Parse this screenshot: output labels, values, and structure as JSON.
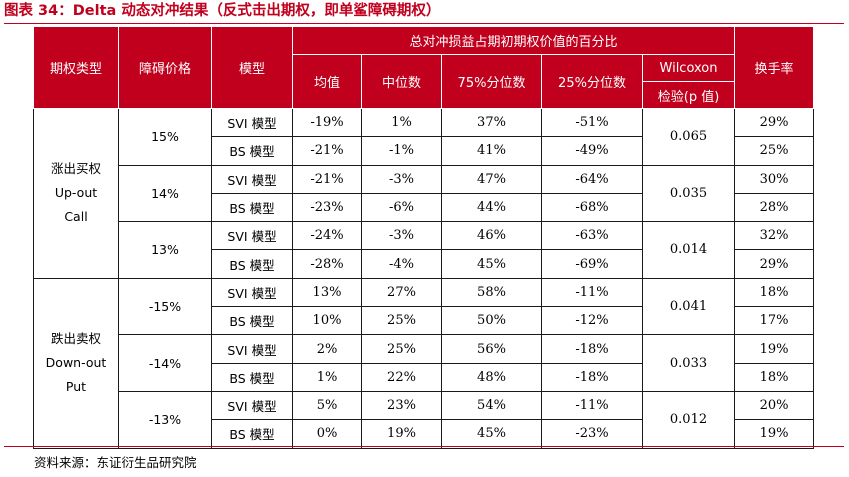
{
  "title": "图表 34：Delta 动态对冲结果（反式击出期权，即单鲨障碍期权）",
  "header": {
    "option_type": "期权类型",
    "barrier_price": "障碍价格",
    "model": "模型",
    "group": "总对冲损益占期初期权价值的百分比",
    "mean": "均值",
    "median": "中位数",
    "p75": "75%分位数",
    "p25": "25%分位数",
    "wilcoxon_line1": "Wilcoxon",
    "wilcoxon_line2": "检验(p 值)",
    "turnover": "换手率"
  },
  "groups": [
    {
      "type_lines": [
        "涨出买权",
        "Up-out",
        "Call"
      ],
      "barriers": [
        {
          "barrier": "15%",
          "p_value": "0.065",
          "rows": [
            {
              "model": "SVI 模型",
              "mean": "-19%",
              "median": "1%",
              "p75": "37%",
              "p25": "-51%",
              "turnover": "29%"
            },
            {
              "model": "BS 模型",
              "mean": "-21%",
              "median": "-1%",
              "p75": "41%",
              "p25": "-49%",
              "turnover": "25%"
            }
          ]
        },
        {
          "barrier": "14%",
          "p_value": "0.035",
          "rows": [
            {
              "model": "SVI 模型",
              "mean": "-21%",
              "median": "-3%",
              "p75": "47%",
              "p25": "-64%",
              "turnover": "30%"
            },
            {
              "model": "BS 模型",
              "mean": "-23%",
              "median": "-6%",
              "p75": "44%",
              "p25": "-68%",
              "turnover": "28%"
            }
          ]
        },
        {
          "barrier": "13%",
          "p_value": "0.014",
          "rows": [
            {
              "model": "SVI 模型",
              "mean": "-24%",
              "median": "-3%",
              "p75": "46%",
              "p25": "-63%",
              "turnover": "32%"
            },
            {
              "model": "BS 模型",
              "mean": "-28%",
              "median": "-4%",
              "p75": "45%",
              "p25": "-69%",
              "turnover": "29%"
            }
          ]
        }
      ]
    },
    {
      "type_lines": [
        "跌出卖权",
        "Down-out",
        "Put"
      ],
      "barriers": [
        {
          "barrier": "-15%",
          "p_value": "0.041",
          "rows": [
            {
              "model": "SVI 模型",
              "mean": "13%",
              "median": "27%",
              "p75": "58%",
              "p25": "-11%",
              "turnover": "18%"
            },
            {
              "model": "BS 模型",
              "mean": "10%",
              "median": "25%",
              "p75": "50%",
              "p25": "-12%",
              "turnover": "17%"
            }
          ]
        },
        {
          "barrier": "-14%",
          "p_value": "0.033",
          "rows": [
            {
              "model": "SVI 模型",
              "mean": "2%",
              "median": "25%",
              "p75": "56%",
              "p25": "-18%",
              "turnover": "19%"
            },
            {
              "model": "BS 模型",
              "mean": "1%",
              "median": "22%",
              "p75": "48%",
              "p25": "-18%",
              "turnover": "18%"
            }
          ]
        },
        {
          "barrier": "-13%",
          "p_value": "0.012",
          "rows": [
            {
              "model": "SVI 模型",
              "mean": "5%",
              "median": "23%",
              "p75": "54%",
              "p25": "-11%",
              "turnover": "20%"
            },
            {
              "model": "BS 模型",
              "mean": "0%",
              "median": "19%",
              "p75": "45%",
              "p25": "-23%",
              "turnover": "19%"
            }
          ]
        }
      ]
    }
  ],
  "source": "资料来源：东证衍生品研究院",
  "colors": {
    "accent": "#c0001d",
    "header_text": "#ffffff"
  }
}
